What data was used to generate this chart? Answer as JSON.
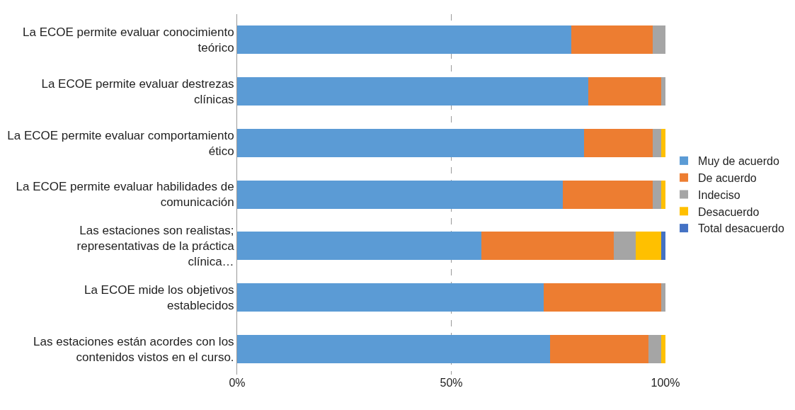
{
  "chart_data": {
    "type": "bar",
    "orientation": "horizontal",
    "stacked": true,
    "categories": [
      "La ECOE permite evaluar conocimiento teórico",
      "La ECOE permite evaluar destrezas clínicas",
      "La ECOE permite evaluar comportamiento ético",
      "La ECOE permite evaluar habilidades de comunicación",
      "Las estaciones son realistas; representativas de la práctica clínica…",
      "La ECOE mide los objetivos establecidos",
      "Las estaciones están acordes con los contenidos vistos en el curso."
    ],
    "series": [
      {
        "name": "Muy de acuerdo",
        "color": "#5b9bd5",
        "values": [
          78,
          82,
          81,
          76,
          57,
          71.5,
          73
        ]
      },
      {
        "name": "De acuerdo",
        "color": "#ed7d31",
        "values": [
          19,
          17,
          16,
          21,
          31,
          27.5,
          23
        ]
      },
      {
        "name": "Indeciso",
        "color": "#a5a5a5",
        "values": [
          3,
          1,
          2,
          2,
          5,
          1,
          3
        ]
      },
      {
        "name": "Desacuerdo",
        "color": "#ffc000",
        "values": [
          null,
          null,
          1,
          1,
          6,
          null,
          1
        ]
      },
      {
        "name": "Total desacuerdo",
        "color": "#4472c4",
        "values": [
          null,
          null,
          null,
          null,
          1,
          null,
          null
        ]
      }
    ],
    "xlim": [
      0,
      100
    ],
    "xticks": [
      {
        "value": 0,
        "label": "0%"
      },
      {
        "value": 50,
        "label": "50%"
      },
      {
        "value": 100,
        "label": "100%"
      }
    ],
    "grid": "x",
    "legend": "right"
  }
}
